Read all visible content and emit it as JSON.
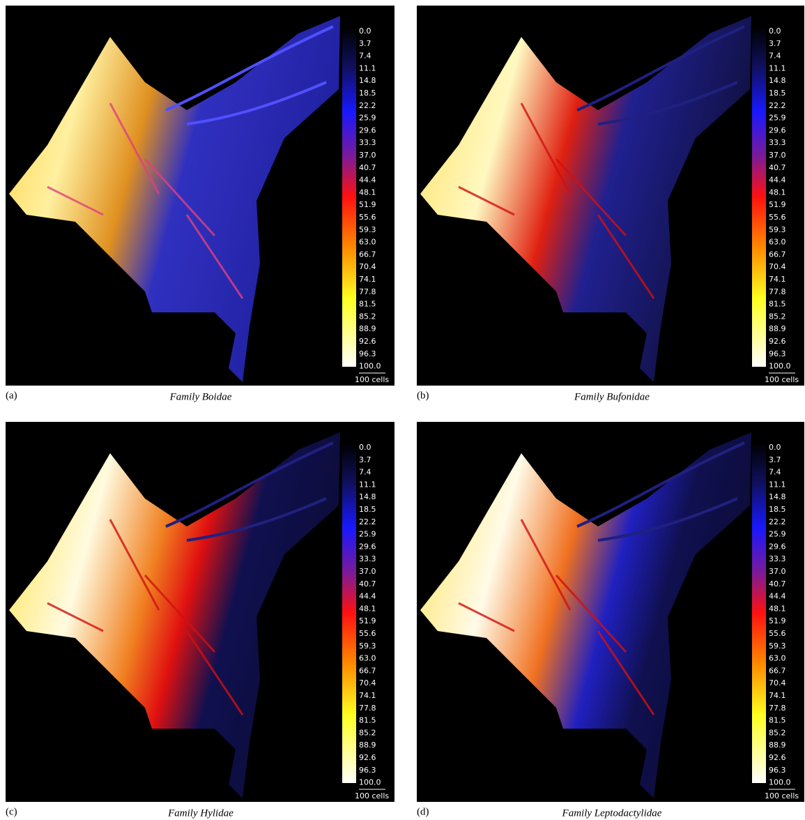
{
  "panels": [
    {
      "label": "(a)",
      "caption": "Family Boidae"
    },
    {
      "label": "(b)",
      "caption": "Family Bufonidae"
    },
    {
      "label": "(c)",
      "caption": "Family Hylidae"
    },
    {
      "label": "(d)",
      "caption": "Family Leptodactylidae"
    }
  ],
  "legend": {
    "labels": [
      "0.0",
      "3.7",
      "7.4",
      "11.1",
      "14.8",
      "18.5",
      "22.2",
      "25.9",
      "29.6",
      "33.3",
      "37.0",
      "40.7",
      "44.4",
      "48.1",
      "51.9",
      "55.6",
      "59.3",
      "63.0",
      "66.7",
      "70.4",
      "74.1",
      "77.8",
      "81.5",
      "85.2",
      "88.9",
      "92.6",
      "96.3",
      "100.0"
    ],
    "scale_bar": "100 cells"
  }
}
